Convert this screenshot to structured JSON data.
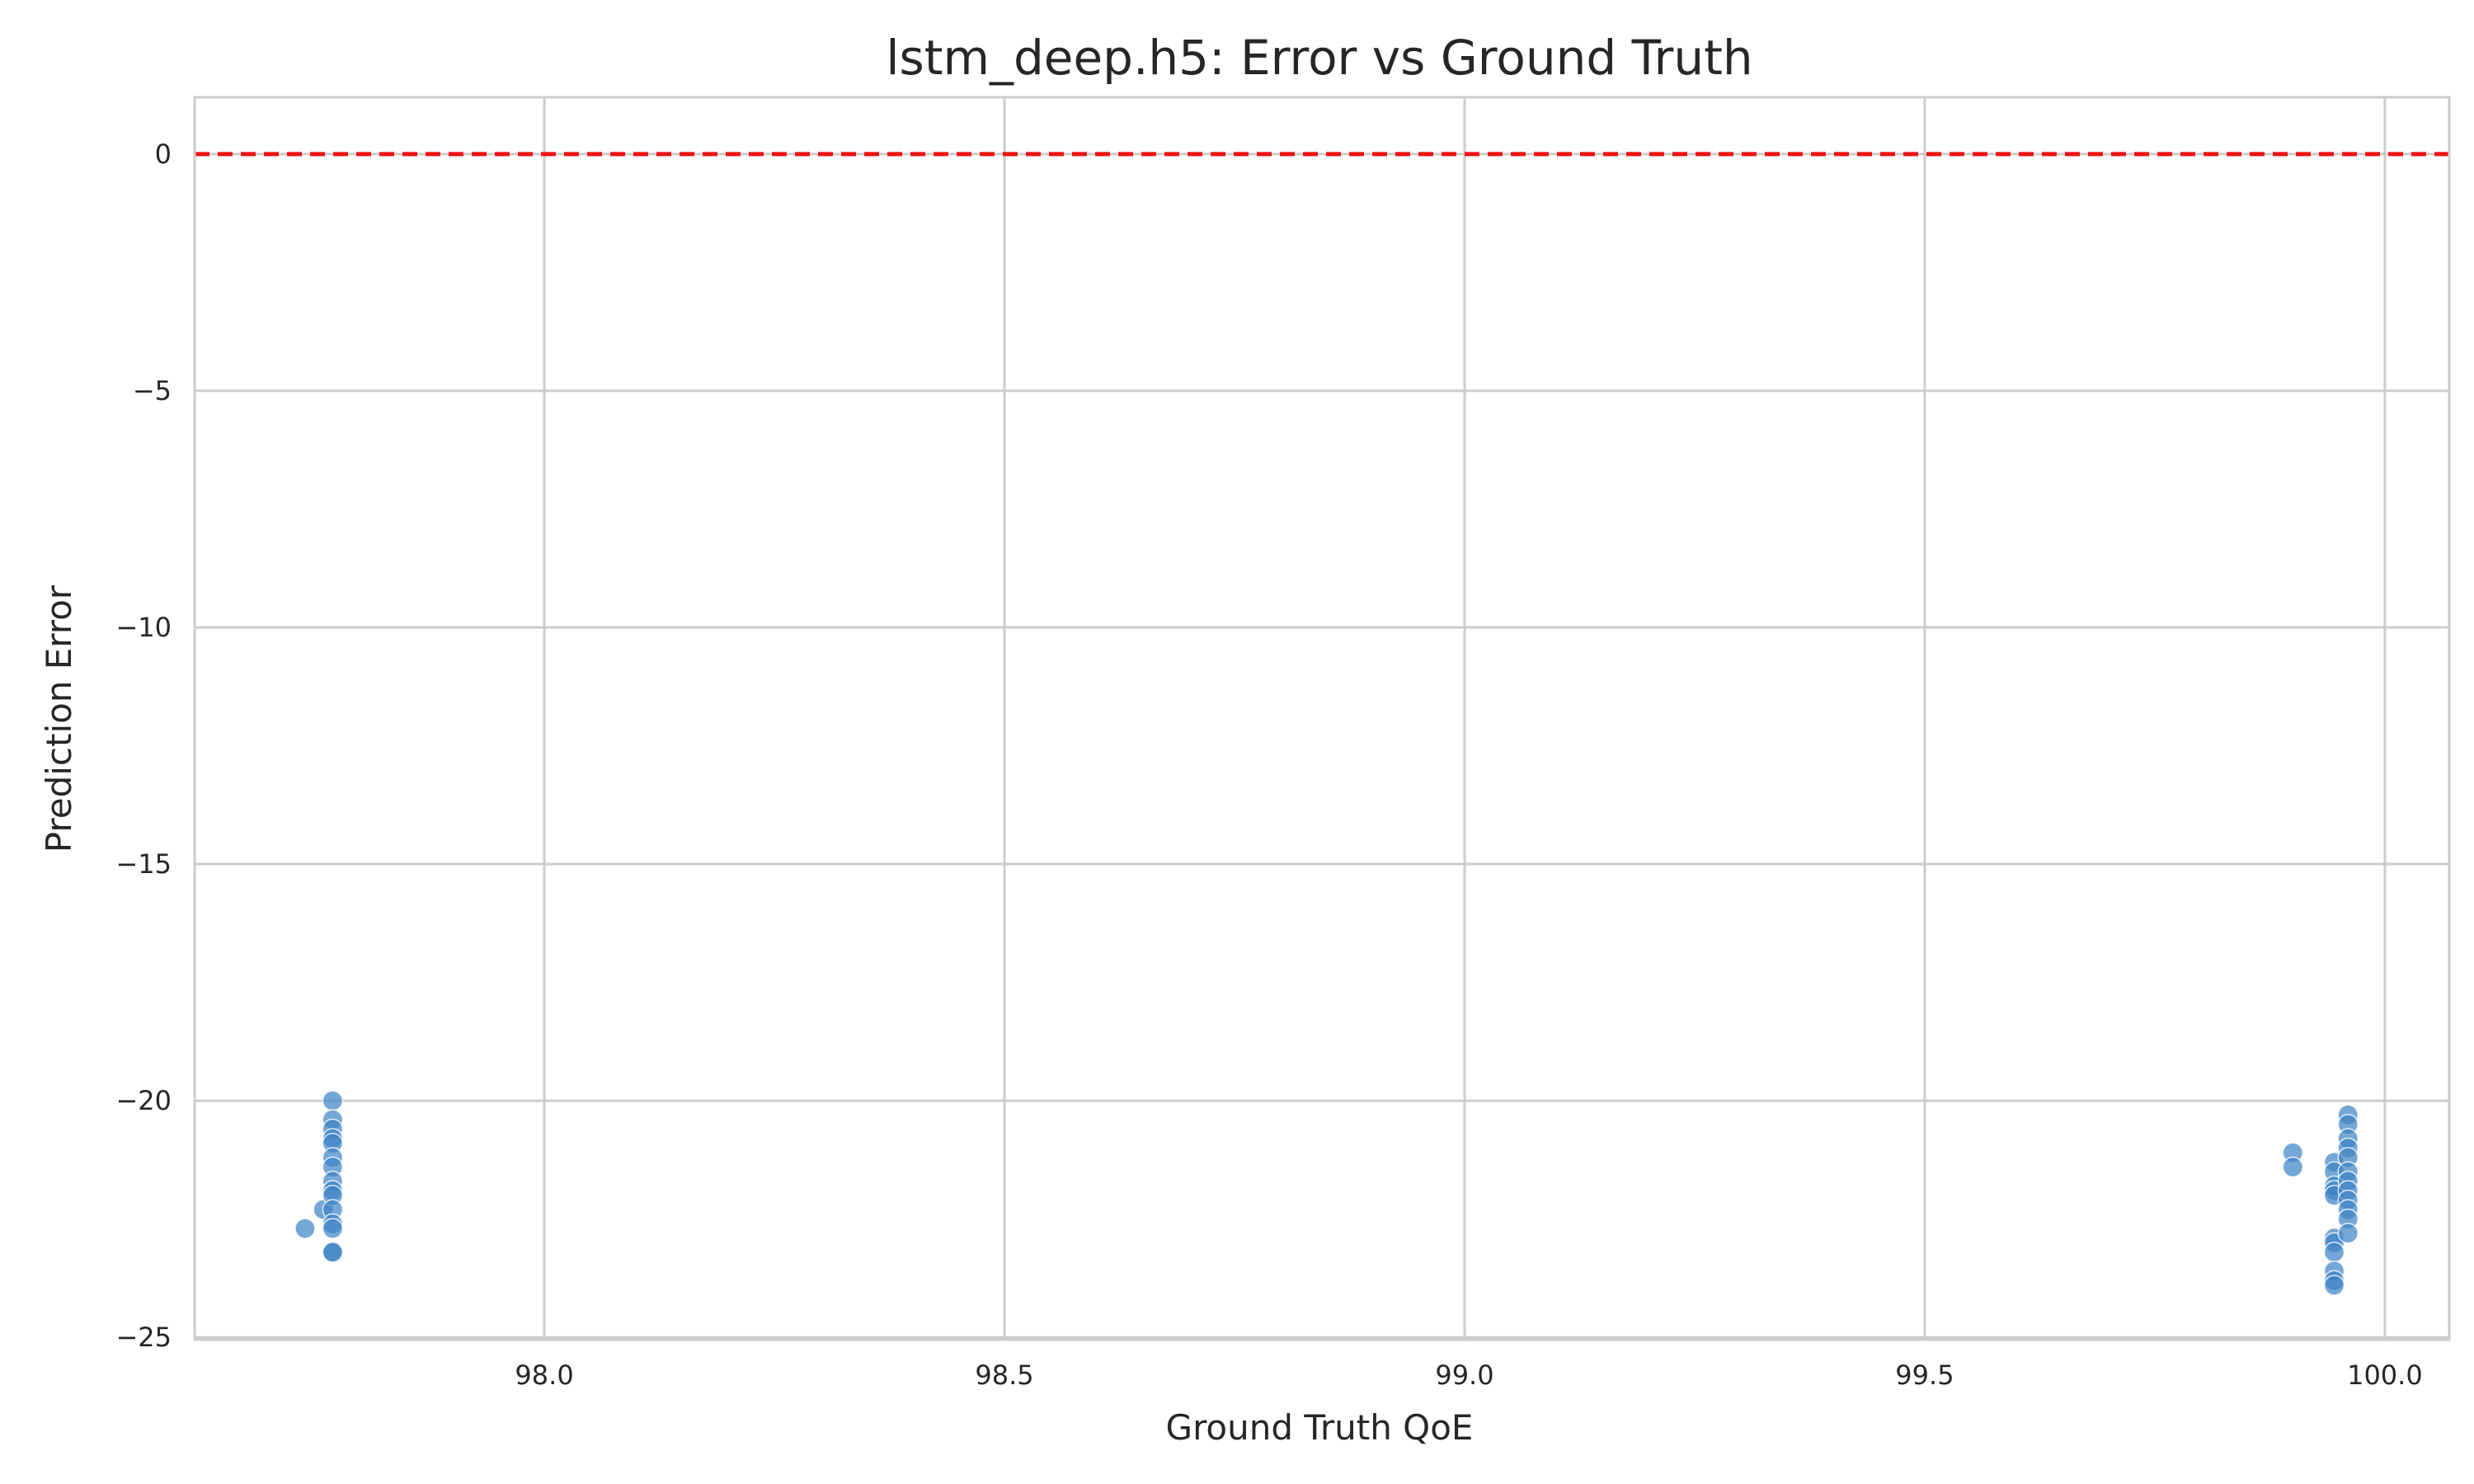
{
  "chart_data": {
    "type": "scatter",
    "title": "lstm_deep.h5: Error vs Ground Truth",
    "xlabel": "Ground Truth QoE",
    "ylabel": "Prediction Error",
    "xlim": [
      97.62,
      100.07
    ],
    "ylim": [
      -25.05,
      1.2
    ],
    "xticks": [
      98.0,
      98.5,
      99.0,
      99.5,
      100.0
    ],
    "xtick_labels": [
      "98.0",
      "98.5",
      "99.0",
      "99.5",
      "100.0"
    ],
    "yticks": [
      0,
      -5,
      -10,
      -15,
      -20,
      -25
    ],
    "ytick_labels": [
      "0",
      "−5",
      "−10",
      "−15",
      "−20",
      "−25"
    ],
    "grid": true,
    "reference_line": {
      "y": 0,
      "style": "dashed",
      "color": "#ee1111"
    },
    "point_color": "#3b82c4",
    "series": [
      {
        "points": [
          [
            97.74,
            -22.7
          ],
          [
            97.76,
            -22.3
          ],
          [
            97.77,
            -20.0
          ],
          [
            97.77,
            -20.4
          ],
          [
            97.77,
            -20.6
          ],
          [
            97.77,
            -20.8
          ],
          [
            97.77,
            -20.9
          ],
          [
            97.77,
            -21.2
          ],
          [
            97.77,
            -21.4
          ],
          [
            97.77,
            -21.7
          ],
          [
            97.77,
            -21.9
          ],
          [
            97.77,
            -22.0
          ],
          [
            97.77,
            -22.3
          ],
          [
            97.77,
            -22.6
          ],
          [
            97.77,
            -22.7
          ],
          [
            97.77,
            -23.2
          ],
          [
            97.77,
            -23.2
          ],
          [
            99.9,
            -21.1
          ],
          [
            99.9,
            -21.4
          ],
          [
            99.945,
            -21.3
          ],
          [
            99.945,
            -21.5
          ],
          [
            99.945,
            -21.8
          ],
          [
            99.945,
            -21.9
          ],
          [
            99.945,
            -22.0
          ],
          [
            99.945,
            -22.9
          ],
          [
            99.945,
            -23.0
          ],
          [
            99.945,
            -23.2
          ],
          [
            99.945,
            -23.6
          ],
          [
            99.945,
            -23.8
          ],
          [
            99.945,
            -23.9
          ],
          [
            99.96,
            -20.3
          ],
          [
            99.96,
            -20.5
          ],
          [
            99.96,
            -20.8
          ],
          [
            99.96,
            -21.0
          ],
          [
            99.96,
            -21.2
          ],
          [
            99.96,
            -21.5
          ],
          [
            99.96,
            -21.7
          ],
          [
            99.96,
            -21.9
          ],
          [
            99.96,
            -22.1
          ],
          [
            99.96,
            -22.3
          ],
          [
            99.96,
            -22.5
          ],
          [
            99.96,
            -22.8
          ]
        ]
      }
    ]
  }
}
